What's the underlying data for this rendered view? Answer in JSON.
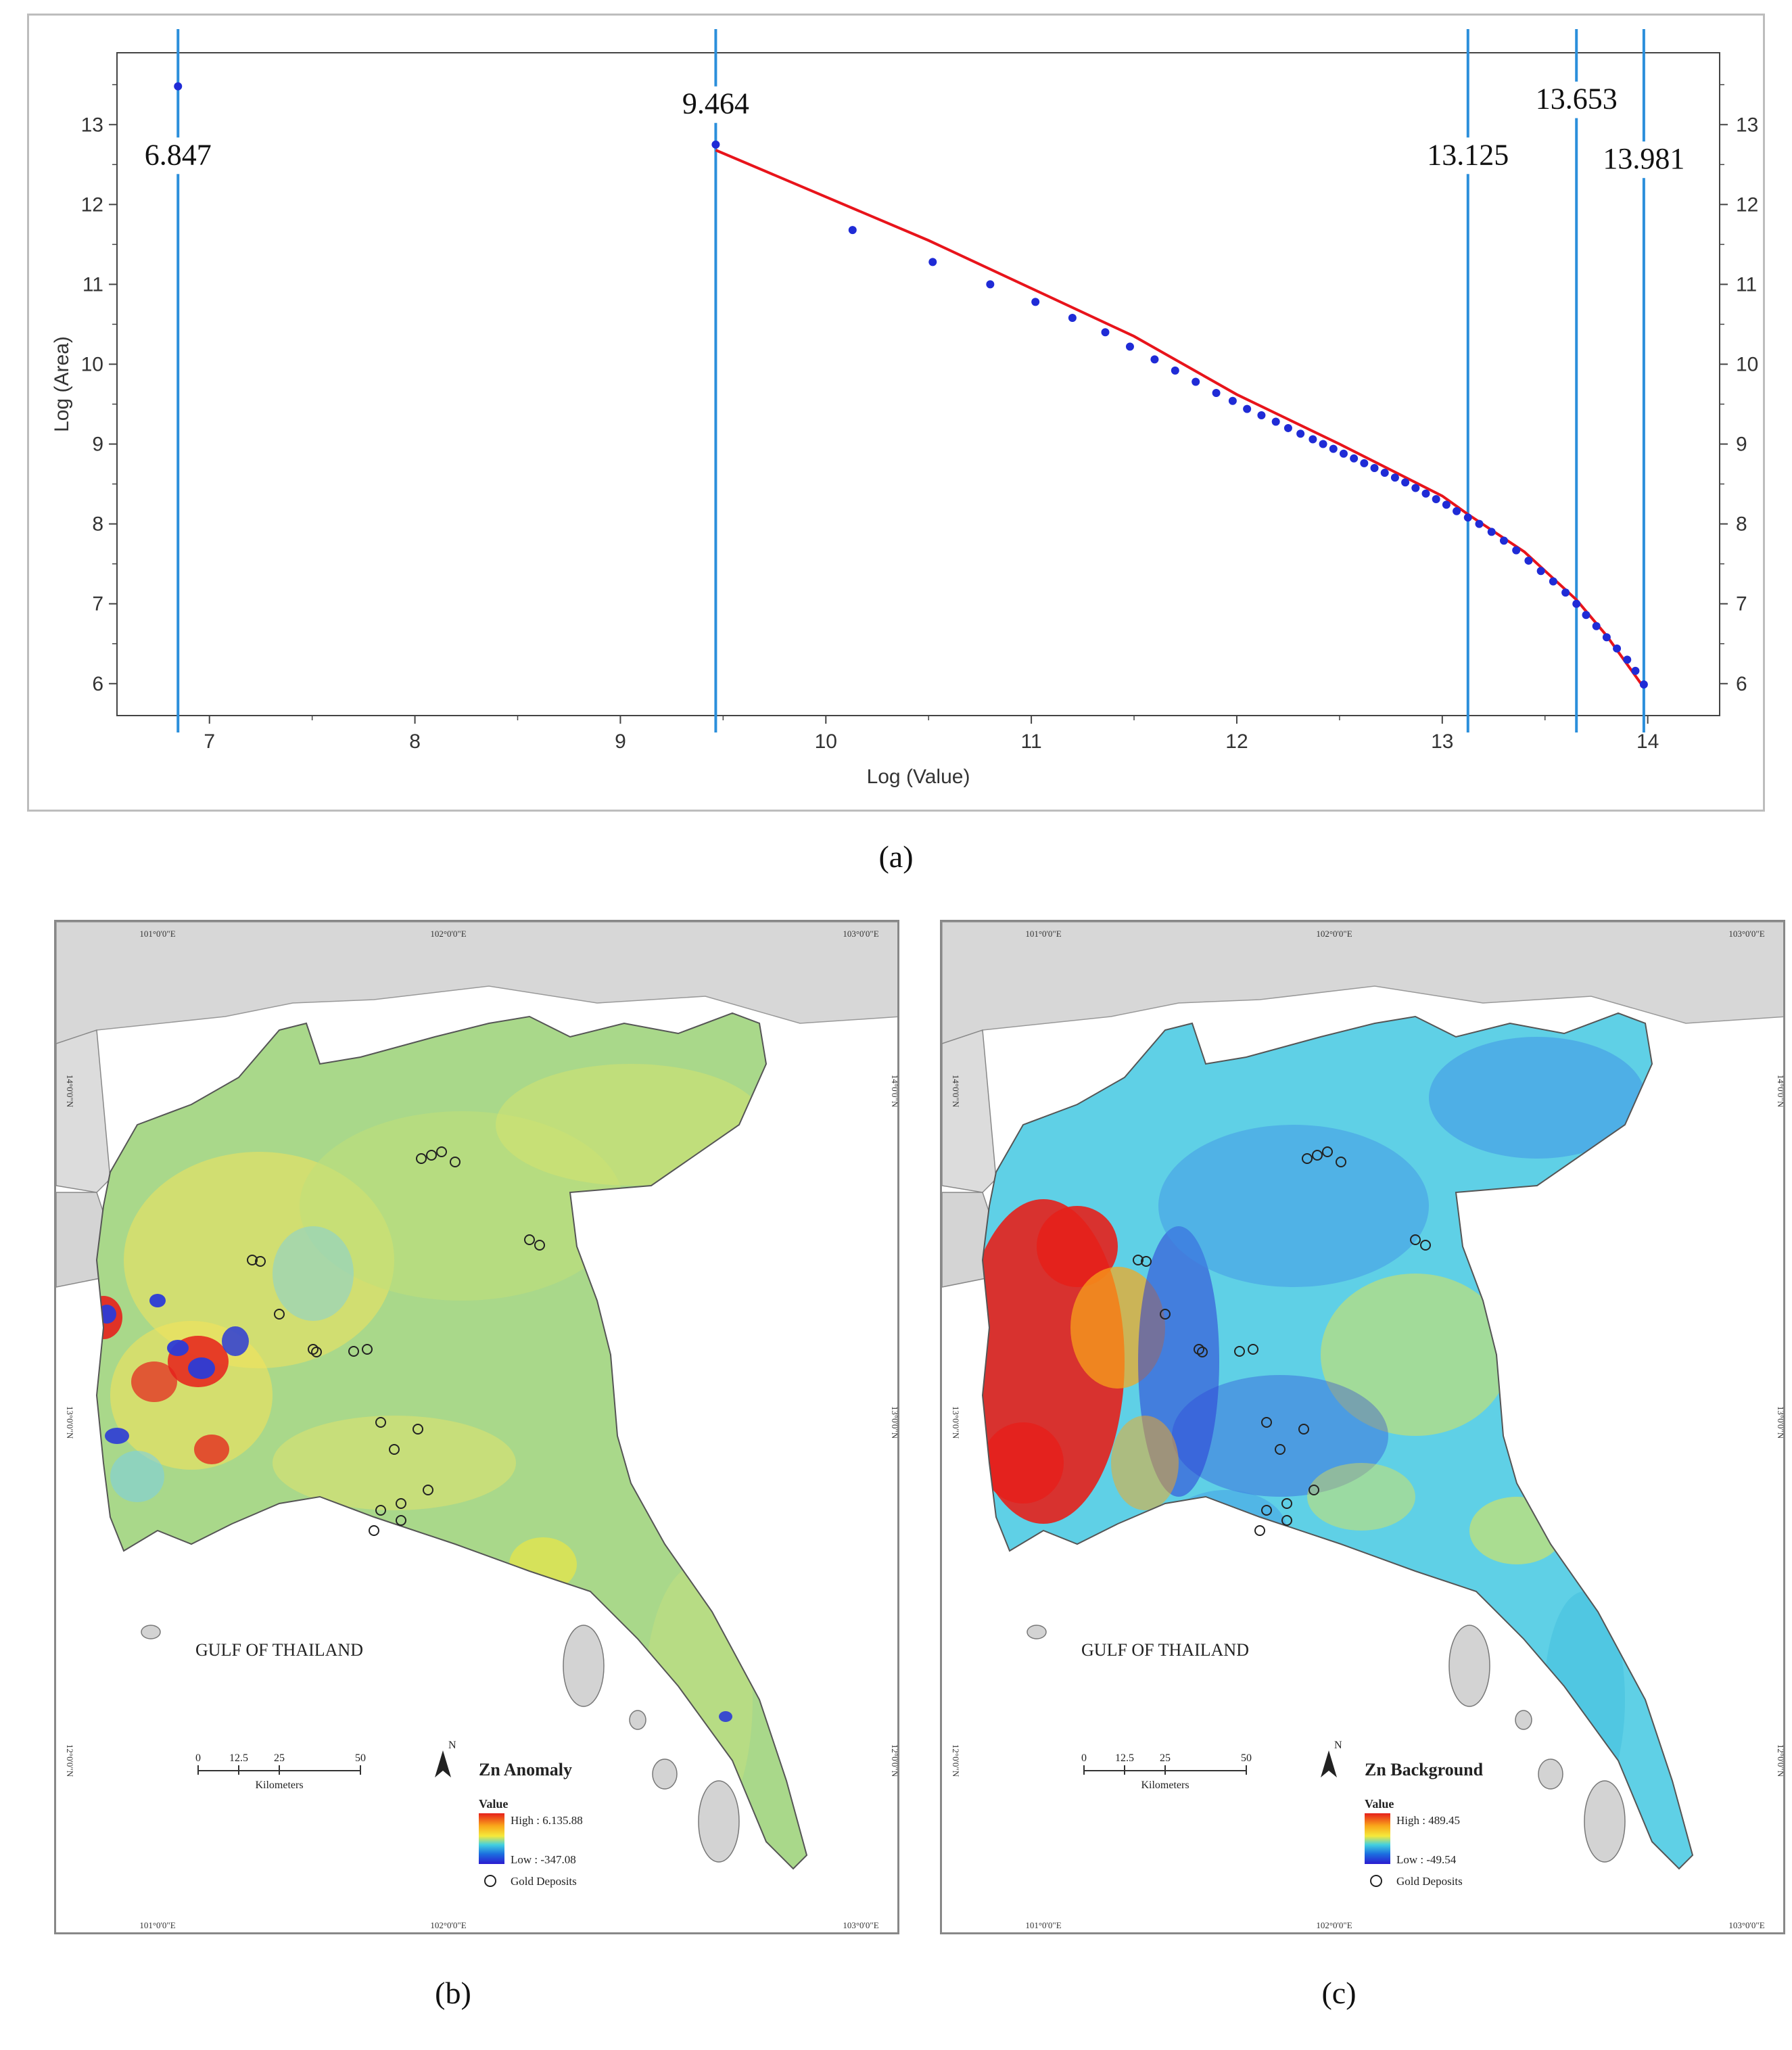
{
  "figure": {
    "caption_a": "(a)",
    "caption_b": "(b)",
    "caption_c": "(c)"
  },
  "chart_data": {
    "type": "scatter",
    "xlabel": "Log (Value)",
    "ylabel": "Log (Area)",
    "xlim": [
      6.55,
      14.35
    ],
    "ylim": [
      5.6,
      13.9
    ],
    "xticks": [
      7,
      8,
      9,
      10,
      11,
      12,
      13,
      14
    ],
    "yticks": [
      6,
      7,
      8,
      9,
      10,
      11,
      12,
      13
    ],
    "grid": false,
    "point_color": "#1f2bd6",
    "fit_line_color": "#e8141b",
    "threshold_color": "#2b8fdb",
    "points": [
      [
        6.847,
        13.48
      ],
      [
        9.464,
        12.75
      ],
      [
        10.13,
        11.68
      ],
      [
        10.52,
        11.28
      ],
      [
        10.8,
        11.0
      ],
      [
        11.02,
        10.78
      ],
      [
        11.2,
        10.58
      ],
      [
        11.36,
        10.4
      ],
      [
        11.48,
        10.22
      ],
      [
        11.6,
        10.06
      ],
      [
        11.7,
        9.92
      ],
      [
        11.8,
        9.78
      ],
      [
        11.9,
        9.64
      ],
      [
        11.98,
        9.54
      ],
      [
        12.05,
        9.44
      ],
      [
        12.12,
        9.36
      ],
      [
        12.19,
        9.28
      ],
      [
        12.25,
        9.2
      ],
      [
        12.31,
        9.13
      ],
      [
        12.37,
        9.06
      ],
      [
        12.42,
        9.0
      ],
      [
        12.47,
        8.94
      ],
      [
        12.52,
        8.88
      ],
      [
        12.57,
        8.82
      ],
      [
        12.62,
        8.76
      ],
      [
        12.67,
        8.7
      ],
      [
        12.72,
        8.64
      ],
      [
        12.77,
        8.58
      ],
      [
        12.82,
        8.52
      ],
      [
        12.87,
        8.45
      ],
      [
        12.92,
        8.38
      ],
      [
        12.97,
        8.31
      ],
      [
        13.02,
        8.24
      ],
      [
        13.07,
        8.16
      ],
      [
        13.125,
        8.08
      ],
      [
        13.18,
        8.0
      ],
      [
        13.24,
        7.9
      ],
      [
        13.3,
        7.79
      ],
      [
        13.36,
        7.67
      ],
      [
        13.42,
        7.54
      ],
      [
        13.48,
        7.41
      ],
      [
        13.54,
        7.28
      ],
      [
        13.6,
        7.14
      ],
      [
        13.653,
        7.0
      ],
      [
        13.7,
        6.86
      ],
      [
        13.75,
        6.72
      ],
      [
        13.8,
        6.58
      ],
      [
        13.85,
        6.44
      ],
      [
        13.9,
        6.3
      ],
      [
        13.94,
        6.16
      ],
      [
        13.981,
        5.99
      ]
    ],
    "fit_line": [
      [
        9.464,
        12.68
      ],
      [
        10.5,
        11.55
      ],
      [
        11.5,
        10.35
      ],
      [
        12.0,
        9.62
      ],
      [
        12.5,
        9.0
      ],
      [
        13.0,
        8.35
      ],
      [
        13.125,
        8.12
      ],
      [
        13.4,
        7.65
      ],
      [
        13.653,
        7.05
      ],
      [
        13.8,
        6.6
      ],
      [
        13.981,
        5.95
      ]
    ],
    "thresholds": [
      {
        "x": 6.847,
        "label": "6.847",
        "label_y": 12.5
      },
      {
        "x": 9.464,
        "label": "9.464",
        "label_y": 13.14
      },
      {
        "x": 13.125,
        "label": "13.125",
        "label_y": 12.5
      },
      {
        "x": 13.653,
        "label": "13.653",
        "label_y": 13.2
      },
      {
        "x": 13.981,
        "label": "13.981",
        "label_y": 12.45
      }
    ]
  },
  "maps": [
    {
      "id": "b",
      "layer_title": "Zn Anomaly",
      "legend_value_label": "Value",
      "legend_high": "High : 6.135.88",
      "legend_low": "Low : -347.08",
      "legend_deposits": "Gold Deposits",
      "sea_label": "GULF OF THAILAND",
      "scale_ticks": [
        "0",
        "12.5",
        "25",
        "50"
      ],
      "scale_unit": "Kilometers",
      "north_label": "N",
      "lon_labels": [
        "101°0'0\"E",
        "102°0'0\"E",
        "103°0'0\"E"
      ],
      "lat_labels": [
        "14°0'0\"N",
        "13°0'0\"N",
        "12°0'0\"N"
      ]
    },
    {
      "id": "c",
      "layer_title": "Zn Background",
      "legend_value_label": "Value",
      "legend_high": "High : 489.45",
      "legend_low": "Low : -49.54",
      "legend_deposits": "Gold Deposits",
      "sea_label": "GULF OF THAILAND",
      "scale_ticks": [
        "0",
        "12.5",
        "25",
        "50"
      ],
      "scale_unit": "Kilometers",
      "north_label": "N",
      "lon_labels": [
        "101°0'0\"E",
        "102°0'0\"E",
        "103°0'0\"E"
      ],
      "lat_labels": [
        "14°0'0\"N",
        "13°0'0\"N",
        "12°0'0\"N"
      ]
    }
  ]
}
